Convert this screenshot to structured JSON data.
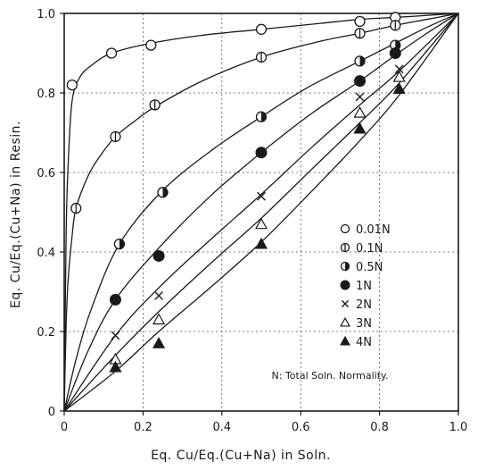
{
  "chart_data": {
    "type": "line",
    "title": "",
    "xlabel": "Eq. Cu/Eq.(Cu+Na) in Soln.",
    "ylabel": "Eq. Cu/Eq.(Cu+Na) in Resin.",
    "xlim": [
      0,
      1.0
    ],
    "ylim": [
      0,
      1.0
    ],
    "x_ticks": [
      "0",
      "0.2",
      "0.4",
      "0.6",
      "0.8",
      "1.0"
    ],
    "y_ticks": [
      "0",
      "0.2",
      "0.4",
      "0.6",
      "0.8",
      "1.0"
    ],
    "grid": true,
    "legend_position": "right",
    "annotation": "N: Total Soln. Normality.",
    "series": [
      {
        "name": "0.01N",
        "marker": "open-circle",
        "x": [
          0.02,
          0.12,
          0.22,
          0.5,
          0.75,
          0.84
        ],
        "y": [
          0.82,
          0.9,
          0.92,
          0.96,
          0.98,
          0.99
        ],
        "curve_x": [
          0,
          0.005,
          0.01,
          0.02,
          0.04,
          0.07,
          0.12,
          0.22,
          0.35,
          0.5,
          0.65,
          0.75,
          0.84,
          0.92,
          1.0
        ],
        "curve_y": [
          0,
          0.45,
          0.62,
          0.78,
          0.84,
          0.87,
          0.9,
          0.925,
          0.945,
          0.96,
          0.975,
          0.985,
          0.99,
          0.995,
          1.0
        ]
      },
      {
        "name": "0.1N",
        "marker": "circle-vertical-bar",
        "x": [
          0.03,
          0.13,
          0.23,
          0.5,
          0.75,
          0.84
        ],
        "y": [
          0.51,
          0.69,
          0.77,
          0.89,
          0.95,
          0.97
        ],
        "curve_x": [
          0,
          0.005,
          0.01,
          0.02,
          0.03,
          0.06,
          0.09,
          0.13,
          0.18,
          0.23,
          0.35,
          0.5,
          0.65,
          0.75,
          0.84,
          0.92,
          1.0
        ],
        "curve_y": [
          0,
          0.22,
          0.33,
          0.44,
          0.51,
          0.59,
          0.64,
          0.69,
          0.73,
          0.765,
          0.83,
          0.89,
          0.93,
          0.95,
          0.97,
          0.985,
          1.0
        ]
      },
      {
        "name": "0.5N",
        "marker": "half-filled-circle",
        "x": [
          0.14,
          0.25,
          0.5,
          0.75,
          0.84
        ],
        "y": [
          0.42,
          0.55,
          0.74,
          0.88,
          0.92
        ],
        "curve_x": [
          0,
          0.03,
          0.07,
          0.14,
          0.25,
          0.38,
          0.5,
          0.62,
          0.75,
          0.84,
          0.92,
          1.0
        ],
        "curve_y": [
          0,
          0.13,
          0.26,
          0.42,
          0.555,
          0.66,
          0.74,
          0.815,
          0.88,
          0.925,
          0.965,
          1.0
        ]
      },
      {
        "name": "1N",
        "marker": "filled-circle",
        "x": [
          0.13,
          0.24,
          0.5,
          0.75,
          0.84
        ],
        "y": [
          0.28,
          0.39,
          0.65,
          0.83,
          0.9
        ],
        "curve_x": [
          0,
          0.06,
          0.13,
          0.24,
          0.37,
          0.5,
          0.63,
          0.75,
          0.84,
          0.92,
          1.0
        ],
        "curve_y": [
          0,
          0.15,
          0.28,
          0.41,
          0.54,
          0.65,
          0.75,
          0.83,
          0.895,
          0.95,
          1.0
        ]
      },
      {
        "name": "2N",
        "marker": "x",
        "x": [
          0.13,
          0.24,
          0.5,
          0.75,
          0.85
        ],
        "y": [
          0.19,
          0.29,
          0.54,
          0.79,
          0.86
        ],
        "curve_x": [
          0,
          0.13,
          0.24,
          0.37,
          0.5,
          0.63,
          0.75,
          0.85,
          1.0
        ],
        "curve_y": [
          0,
          0.19,
          0.31,
          0.43,
          0.545,
          0.665,
          0.77,
          0.855,
          1.0
        ]
      },
      {
        "name": "3N",
        "marker": "open-triangle",
        "x": [
          0.13,
          0.24,
          0.5,
          0.75,
          0.85
        ],
        "y": [
          0.13,
          0.23,
          0.47,
          0.75,
          0.84
        ],
        "curve_x": [
          0,
          0.13,
          0.24,
          0.37,
          0.5,
          0.63,
          0.75,
          0.85,
          1.0
        ],
        "curve_y": [
          0,
          0.14,
          0.25,
          0.37,
          0.485,
          0.61,
          0.725,
          0.825,
          1.0
        ]
      },
      {
        "name": "4N",
        "marker": "filled-triangle",
        "x": [
          0.13,
          0.24,
          0.5,
          0.75,
          0.85
        ],
        "y": [
          0.11,
          0.17,
          0.42,
          0.71,
          0.81
        ],
        "curve_x": [
          0,
          0.13,
          0.24,
          0.37,
          0.5,
          0.63,
          0.75,
          0.85,
          1.0
        ],
        "curve_y": [
          0,
          0.1,
          0.2,
          0.31,
          0.425,
          0.555,
          0.68,
          0.795,
          1.0
        ]
      }
    ]
  }
}
